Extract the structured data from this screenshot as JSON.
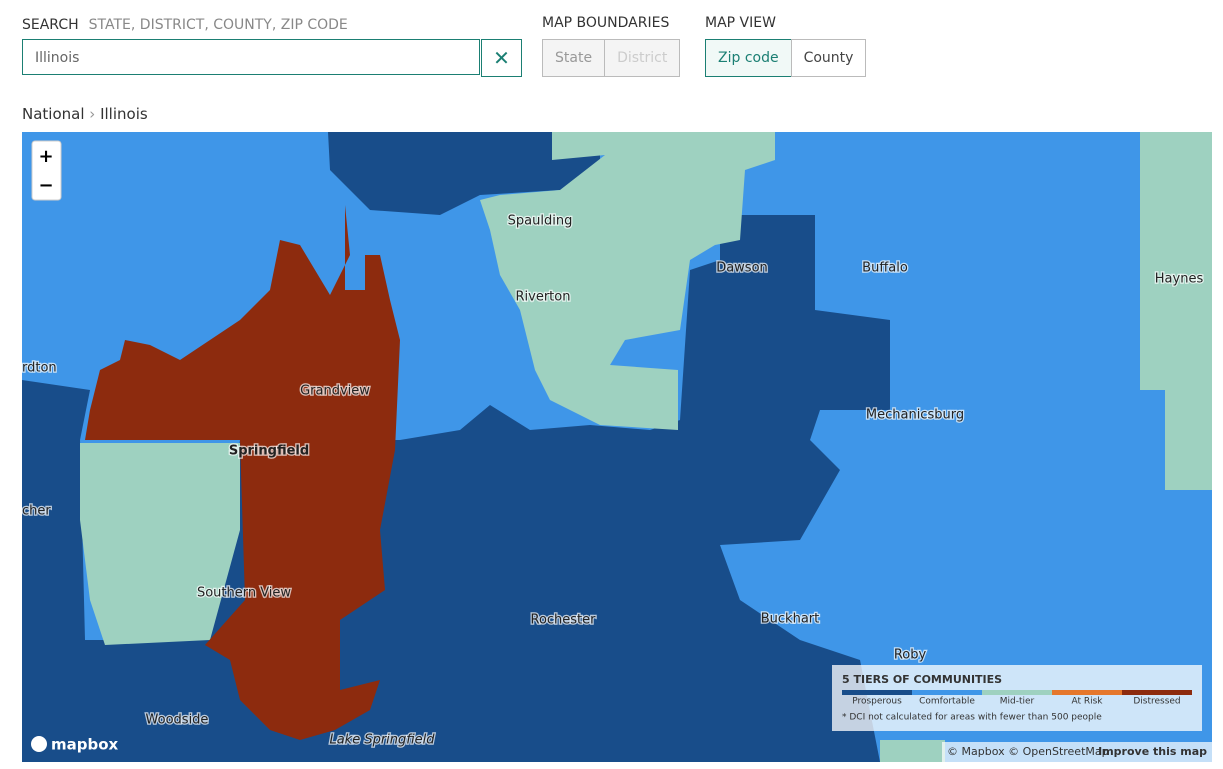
{
  "search": {
    "label": "SEARCH",
    "placeholder": "STATE, DISTRICT, COUNTY, ZIP CODE",
    "value": "Illinois",
    "clear": "✕"
  },
  "map_boundaries": {
    "label": "MAP BOUNDARIES",
    "options": [
      "State",
      "District"
    ]
  },
  "map_view": {
    "label": "MAP VIEW",
    "options": [
      "Zip code",
      "County"
    ]
  },
  "breadcrumb": [
    "National",
    "Illinois"
  ],
  "map": {
    "zoom": [
      "+",
      "−"
    ],
    "places": [
      "Spaulding",
      "Riverton",
      "Dawson",
      "Buffalo",
      "Haynes",
      "rdton",
      "Grandview",
      "Springfield",
      "Mechanicsburg",
      "cher",
      "Southern View",
      "Rochester",
      "Buckhart",
      "Roby",
      "Woodside",
      "Lake Springfield"
    ],
    "logo": "mapbox",
    "attribution": "© Mapbox © OpenStreetMap",
    "improve": "Improve this map"
  },
  "legend": {
    "title": "5 TIERS OF COMMUNITIES",
    "tiers": [
      {
        "label": "Prosperous",
        "color": "#184d8a"
      },
      {
        "label": "Comfortable",
        "color": "#3f96e8"
      },
      {
        "label": "Mid-tier",
        "color": "#9ed1c0"
      },
      {
        "label": "At Risk",
        "color": "#e5772c"
      },
      {
        "label": "Distressed",
        "color": "#8d2b0e"
      }
    ],
    "note": "* DCI not calculated for areas with fewer than 500 people"
  }
}
